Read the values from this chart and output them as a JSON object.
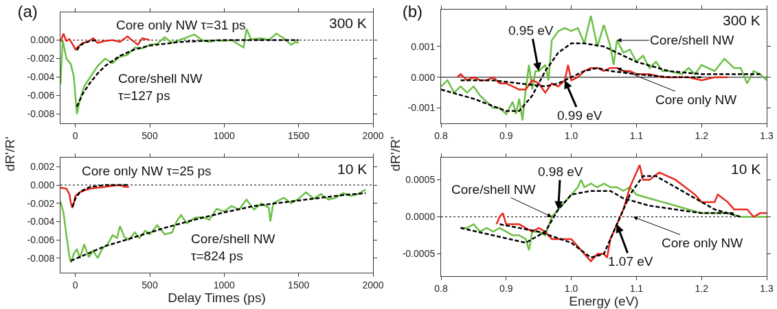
{
  "chart_data": [
    {
      "type": "line",
      "title": "(a)",
      "xlim": [
        -100,
        2000
      ],
      "xticks": [
        0,
        500,
        1000,
        1500,
        2000
      ],
      "ylim": [
        -0.009,
        0.003
      ],
      "yticks": [
        {
          "value": 0,
          "label": "0.000"
        },
        {
          "value": -0.002,
          "label": "-0.002"
        },
        {
          "value": -0.004,
          "label": "-0.004"
        },
        {
          "value": -0.006,
          "label": "-0.006"
        },
        {
          "value": -0.008,
          "label": "-0.008"
        }
      ],
      "ylabel": "dR'/R'",
      "grid": false,
      "marker": "none",
      "annotations": [
        "300 K",
        "Core only NW τ=31 ps",
        "Core/shell NW\nτ=127 ps"
      ],
      "ref_lines": [
        {
          "axis": "y",
          "value": 0,
          "color": "#000000",
          "line_style": "dotted"
        }
      ],
      "series": [
        {
          "color": "#6cbf45",
          "line_style": "solid",
          "x": [
            -100,
            -85,
            -60,
            -30,
            -10,
            10,
            30,
            60,
            100,
            150,
            200,
            250,
            300,
            350,
            400,
            450,
            500,
            550,
            600,
            650,
            700,
            750,
            800,
            850,
            900,
            950,
            1000,
            1050,
            1100,
            1130,
            1150,
            1180,
            1250,
            1300,
            1350,
            1400,
            1450,
            1480,
            1500
          ],
          "values": [
            -0.0048,
            0,
            -0.002,
            -0.0026,
            -0.004,
            -0.008,
            -0.0065,
            -0.005,
            -0.004,
            -0.0028,
            -0.002,
            -0.0025,
            -0.0018,
            -0.0016,
            -0.0008,
            -0.0009,
            -0.0005,
            -0.0004,
            0.0003,
            -0.0003,
            0,
            0.0003,
            0.0006,
            0,
            -0.0002,
            0,
            -0.0001,
            0,
            -0.0005,
            -0.0008,
            0.0012,
            0.0001,
            0.0002,
            0,
            0.0007,
            0.0002,
            -0.0005,
            -0.0002,
            -0.0003
          ]
        },
        {
          "color": "#e8281e",
          "line_style": "solid",
          "x": [
            -100,
            -80,
            -60,
            -40,
            -20,
            0,
            20,
            50,
            80,
            120,
            150,
            200,
            250,
            300,
            350,
            380,
            420,
            450,
            500
          ],
          "values": [
            -0.0002,
            0.0007,
            -0.0001,
            0.0001,
            -0.0004,
            -0.001,
            -0.0007,
            -0.0003,
            -0.0002,
            0.0002,
            -0.0003,
            -0.0001,
            0,
            -0.0002,
            0.0004,
            0,
            -0.0005,
            0.0002,
            0
          ]
        },
        {
          "color": "#000000",
          "line_style": "dashed",
          "x": [
            10,
            50,
            100,
            150,
            200,
            300,
            400,
            500,
            700,
            1000,
            1500
          ],
          "values": [
            -0.0072,
            -0.0058,
            -0.0046,
            -0.0036,
            -0.0028,
            -0.0017,
            -0.001,
            -0.0006,
            -0.0002,
            0,
            0
          ]
        },
        {
          "color": "#000000",
          "line_style": "dashed",
          "x": [
            10,
            30,
            60,
            100,
            150
          ],
          "values": [
            -0.0011,
            -0.0006,
            -0.0003,
            -0.0001,
            0
          ]
        }
      ]
    },
    {
      "type": "line",
      "xlim": [
        -100,
        2000
      ],
      "xticks": [
        0,
        500,
        1000,
        1500,
        2000
      ],
      "ylim": [
        -0.0096,
        0.003
      ],
      "yticks": [
        {
          "value": 0.002,
          "label": "0.002"
        },
        {
          "value": 0,
          "label": "0.000"
        },
        {
          "value": -0.002,
          "label": "-0.002"
        },
        {
          "value": -0.004,
          "label": "-0.004"
        },
        {
          "value": -0.006,
          "label": "-0.006"
        },
        {
          "value": -0.008,
          "label": "-0.008"
        }
      ],
      "xlabel": "Delay Times (ps)",
      "grid": false,
      "marker": "none",
      "annotations": [
        "10 K",
        "Core only NW τ=25 ps",
        "Core/shell NW\nτ=824 ps"
      ],
      "ref_lines": [
        {
          "axis": "y",
          "value": 0,
          "color": "#000000",
          "line_style": "dotted"
        }
      ],
      "series": [
        {
          "color": "#6cbf45",
          "line_style": "solid",
          "x": [
            -100,
            -80,
            -60,
            -40,
            -30,
            -10,
            10,
            30,
            60,
            90,
            120,
            150,
            180,
            220,
            250,
            280,
            300,
            330,
            360,
            400,
            430,
            470,
            500,
            550,
            600,
            650,
            680,
            710,
            750,
            800,
            850,
            900,
            950,
            1000,
            1050,
            1100,
            1150,
            1200,
            1250,
            1300,
            1310,
            1330,
            1400,
            1450,
            1500,
            1550,
            1600,
            1650,
            1700,
            1750,
            1800,
            1850,
            1900,
            1950
          ],
          "values": [
            -0.0018,
            -0.003,
            -0.0055,
            -0.0078,
            -0.0085,
            -0.0075,
            -0.007,
            -0.008,
            -0.0065,
            -0.0079,
            -0.0072,
            -0.008,
            -0.007,
            -0.0064,
            -0.0055,
            -0.0058,
            -0.0045,
            -0.0057,
            -0.006,
            -0.0052,
            -0.0058,
            -0.005,
            -0.0054,
            -0.0044,
            -0.0054,
            -0.0052,
            -0.004,
            -0.0033,
            -0.0042,
            -0.0036,
            -0.0035,
            -0.0038,
            -0.0026,
            -0.0029,
            -0.0023,
            -0.0027,
            -0.0016,
            -0.0027,
            -0.002,
            -0.0025,
            -0.004,
            -0.002,
            -0.0014,
            -0.002,
            -0.0015,
            -0.0008,
            -0.0015,
            -0.001,
            -0.0016,
            -0.0014,
            -0.0009,
            -0.0012,
            -0.001,
            -0.0005
          ]
        },
        {
          "color": "#e8281e",
          "line_style": "solid",
          "x": [
            -100,
            -60,
            -40,
            -30,
            -20,
            -10,
            0,
            30,
            60,
            100,
            150,
            200,
            250,
            300,
            330,
            360
          ],
          "values": [
            -0.0003,
            -0.0004,
            -0.001,
            -0.002,
            -0.0025,
            -0.002,
            -0.0012,
            -0.0008,
            -0.0006,
            -0.0004,
            -0.0003,
            -0.0002,
            -0.0001,
            0,
            -0.0002,
            -0.0002
          ]
        },
        {
          "color": "#000000",
          "line_style": "dashed",
          "x": [
            -30,
            200,
            400,
            600,
            800,
            1000,
            1200,
            1400,
            1600,
            1800,
            1950
          ],
          "values": [
            -0.0083,
            -0.0067,
            -0.0057,
            -0.0047,
            -0.0038,
            -0.003,
            -0.0023,
            -0.0019,
            -0.0015,
            -0.0011,
            -0.0009
          ]
        },
        {
          "color": "#000000",
          "line_style": "dashed",
          "x": [
            -20,
            0,
            30,
            60,
            100,
            200,
            360
          ],
          "values": [
            -0.0024,
            -0.0015,
            -0.0008,
            -0.0005,
            -0.0002,
            0,
            0
          ]
        }
      ]
    },
    {
      "type": "line",
      "title": "(b)",
      "xlim": [
        0.8,
        1.3
      ],
      "xticks": [
        0.8,
        0.9,
        {
          "value": 1,
          "label": "1.0"
        },
        1.1,
        1.2,
        1.3
      ],
      "ylim": [
        -0.0015,
        0.0022
      ],
      "yticks": [
        0.001,
        {
          "value": 0,
          "label": "0.000"
        },
        {
          "value": -0.001,
          "label": "-0.001"
        }
      ],
      "ylabel": "dR'/R'",
      "grid": false,
      "marker": "none",
      "annotations": [
        "300 K",
        {
          "text": "0.95 eV",
          "x": 0.95,
          "y": 0.0002
        },
        {
          "text": "0.99 eV",
          "x": 0.99,
          "y": -0.0001
        },
        {
          "text": "Core/shell NW",
          "x": 1.07,
          "y": 0.0012
        },
        {
          "text": "Core only NW",
          "x": 1.07,
          "y": 0.0003
        }
      ],
      "ref_lines": [
        {
          "axis": "y",
          "value": 0,
          "color": "#000000",
          "line_style": "solid"
        }
      ],
      "series": [
        {
          "color": "#6cbf45",
          "line_style": "solid",
          "x": [
            0.8,
            0.81,
            0.82,
            0.83,
            0.84,
            0.85,
            0.86,
            0.87,
            0.88,
            0.89,
            0.9,
            0.91,
            0.915,
            0.92,
            0.925,
            0.93,
            0.935,
            0.94,
            0.945,
            0.95,
            0.96,
            0.965,
            0.97,
            0.98,
            0.99,
            1.0,
            1.01,
            1.02,
            1.03,
            1.04,
            1.05,
            1.06,
            1.065,
            1.07,
            1.08,
            1.09,
            1.1,
            1.11,
            1.12,
            1.13,
            1.14,
            1.15,
            1.17,
            1.18,
            1.19,
            1.2,
            1.22,
            1.235,
            1.25,
            1.26,
            1.27,
            1.28,
            1.29,
            1.3
          ],
          "values": [
            -0.0003,
            -0.0001,
            -0.0005,
            -0.0003,
            -0.0005,
            -0.0003,
            -0.0006,
            -0.0008,
            -0.001,
            -0.001,
            -0.0012,
            -0.0008,
            -0.0012,
            -0.0007,
            -0.0014,
            -0.0004,
            0.0004,
            -0.0004,
            0.0002,
            0.0002,
            0.0004,
            -0.0001,
            0.0012,
            0.0015,
            0.0016,
            0.0015,
            0.0016,
            0.0011,
            0.002,
            0.001,
            0.0017,
            0.001,
            0.0004,
            0.0012,
            0.0008,
            0.0009,
            0.0005,
            0.0007,
            0.0003,
            0.0005,
            0.0002,
            0.0002,
            0.0001,
            0.0003,
            0.0001,
            0.0004,
            0.0002,
            0.0006,
            0.0003,
            0.0003,
            -0.0002,
            0.0002,
            0.0001,
            -0.0001
          ]
        },
        {
          "color": "#e8281e",
          "line_style": "solid",
          "x": [
            0.825,
            0.83,
            0.84,
            0.85,
            0.86,
            0.87,
            0.88,
            0.89,
            0.9,
            0.91,
            0.92,
            0.93,
            0.94,
            0.95,
            0.96,
            0.97,
            0.98,
            0.99,
            0.995,
            1.0,
            1.01,
            1.02,
            1.03,
            1.04,
            1.05,
            1.06,
            1.07,
            1.08,
            1.09,
            1.1,
            1.12,
            1.14,
            1.16,
            1.18,
            1.2,
            1.22,
            1.24
          ],
          "values": [
            0,
            0.0001,
            -0.0001,
            0,
            -0.0001,
            -0.0001,
            0,
            -0.0002,
            -0.0002,
            -0.0003,
            -0.0004,
            -0.0004,
            -0.0001,
            -0.0002,
            -0.0005,
            -0.0002,
            -0.0003,
            -0.0001,
            0.0004,
            -0.0001,
            0,
            0.0002,
            0.0003,
            0.0003,
            0.0002,
            0.0003,
            0.0003,
            0.0002,
            0.0002,
            0.0001,
            0.0001,
            0,
            0,
            0,
            -0.0001,
            0,
            0
          ]
        },
        {
          "color": "#000000",
          "line_style": "dashed",
          "x": [
            0.8,
            0.85,
            0.9,
            0.92,
            0.94,
            0.96,
            0.98,
            1.0,
            1.02,
            1.05,
            1.08,
            1.1,
            1.15,
            1.2,
            1.25,
            1.29
          ],
          "values": [
            -0.0004,
            -0.0007,
            -0.0011,
            -0.0011,
            -0.0006,
            0.0002,
            0.0008,
            0.0011,
            0.0011,
            0.001,
            0.0007,
            0.0005,
            0.0002,
            0.0001,
            0.0001,
            0.0001
          ]
        },
        {
          "color": "#000000",
          "line_style": "dashed",
          "x": [
            0.83,
            0.88,
            0.92,
            0.96,
            0.98,
            1.0,
            1.02,
            1.04,
            1.06,
            1.1,
            1.15,
            1.2
          ],
          "values": [
            -0.0001,
            -0.0001,
            -0.0002,
            -0.0003,
            -0.0002,
            0,
            0.0002,
            0.0003,
            0.0002,
            0.0001,
            0,
            0
          ]
        }
      ]
    },
    {
      "type": "line",
      "xlim": [
        0.8,
        1.3
      ],
      "xticks": [
        0.8,
        0.9,
        {
          "value": 1,
          "label": "1.0"
        },
        1.1,
        1.2,
        1.3
      ],
      "ylim": [
        -0.0008,
        0.0008
      ],
      "yticks": [
        0.0005,
        {
          "value": 0,
          "label": "0.0000"
        },
        -0.0005
      ],
      "xlabel": "Energy (eV)",
      "grid": false,
      "marker": "none",
      "annotations": [
        "10 K",
        {
          "text": "0.98 eV",
          "x": 0.98,
          "y": 0.0001
        },
        {
          "text": "1.07 eV",
          "x": 1.07,
          "y": -0.0001
        },
        {
          "text": "Core/shell NW",
          "x": 0.97,
          "y": 0
        },
        {
          "text": "Core only NW",
          "x": 1.095,
          "y": 0
        }
      ],
      "ref_lines": [
        {
          "axis": "y",
          "value": 0,
          "color": "#000000",
          "line_style": "dotted"
        }
      ],
      "series": [
        {
          "color": "#6cbf45",
          "line_style": "solid",
          "x": [
            0.83,
            0.84,
            0.85,
            0.86,
            0.87,
            0.88,
            0.89,
            0.9,
            0.91,
            0.92,
            0.93,
            0.935,
            0.94,
            0.95,
            0.96,
            0.97,
            0.98,
            0.99,
            1.0,
            1.01,
            1.015,
            1.02,
            1.03,
            1.04,
            1.05,
            1.06,
            1.07,
            1.08,
            1.09,
            1.1,
            1.12,
            1.14,
            1.16,
            1.18,
            1.2,
            1.22,
            1.24,
            1.26,
            1.28,
            1.3
          ],
          "values": [
            -0.00015,
            -0.00015,
            -0.0001,
            -0.0002,
            -0.00015,
            -0.0002,
            -0.00015,
            -0.0002,
            -0.00025,
            -0.00025,
            -0.0003,
            -0.00045,
            -0.0002,
            -0.0002,
            -0.00025,
            0,
            0.0001,
            0.0002,
            0.0003,
            0.0004,
            0.0005,
            0.0004,
            0.00045,
            0.0004,
            0.00045,
            0.0004,
            0.0004,
            0.00035,
            0.0004,
            0.0003,
            0.00025,
            0.0002,
            0.00015,
            0.0001,
            5e-05,
            5e-05,
            5e-05,
            0,
            0,
            0
          ]
        },
        {
          "color": "#e8281e",
          "line_style": "solid",
          "x": [
            0.885,
            0.89,
            0.895,
            0.9,
            0.91,
            0.92,
            0.93,
            0.94,
            0.95,
            0.96,
            0.97,
            0.98,
            0.99,
            1.0,
            1.01,
            1.02,
            1.03,
            1.04,
            1.05,
            1.055,
            1.06,
            1.07,
            1.08,
            1.09,
            1.1,
            1.105,
            1.11,
            1.12,
            1.135,
            1.16,
            1.19,
            1.2,
            1.22,
            1.225,
            1.24,
            1.25,
            1.26,
            1.27,
            1.28,
            1.29,
            1.3
          ],
          "values": [
            -0.0001,
            0,
            5e-05,
            -0.0001,
            -0.0001,
            -0.0001,
            -0.00015,
            -0.0002,
            -0.00015,
            -0.0002,
            -0.0003,
            -0.0003,
            -0.0003,
            -0.0003,
            -0.0004,
            -0.0005,
            -0.0006,
            -0.0005,
            -0.0005,
            -0.00055,
            -0.0003,
            -0.0001,
            0.0001,
            0.0004,
            0.0006,
            0.0007,
            0.0005,
            0.0005,
            0.0006,
            0.0005,
            0.0003,
            0.0002,
            0.0002,
            0.0003,
            0.0002,
            0.0001,
            0.0001,
            0.0001,
            0,
            5e-05,
            5e-05
          ]
        },
        {
          "color": "#000000",
          "line_style": "dashed",
          "x": [
            0.83,
            0.88,
            0.93,
            0.96,
            0.98,
            1.0,
            1.03,
            1.06,
            1.08,
            1.12,
            1.16,
            1.2,
            1.25
          ],
          "values": [
            -0.00015,
            -0.00025,
            -0.00035,
            -0.0002,
            0.0001,
            0.0003,
            0.00035,
            0.00035,
            0.00025,
            0.00015,
            0.0001,
            5e-05,
            5e-05
          ]
        },
        {
          "color": "#000000",
          "line_style": "dashed",
          "x": [
            0.89,
            0.95,
            1.0,
            1.03,
            1.05,
            1.07,
            1.08,
            1.09,
            1.11,
            1.13,
            1.17,
            1.22,
            1.26
          ],
          "values": [
            -0.0001,
            -0.0002,
            -0.00035,
            -0.00055,
            -0.0005,
            -0.0001,
            0.0001,
            0.0003,
            0.00055,
            0.00055,
            0.00035,
            0.0001,
            0
          ]
        }
      ]
    }
  ]
}
